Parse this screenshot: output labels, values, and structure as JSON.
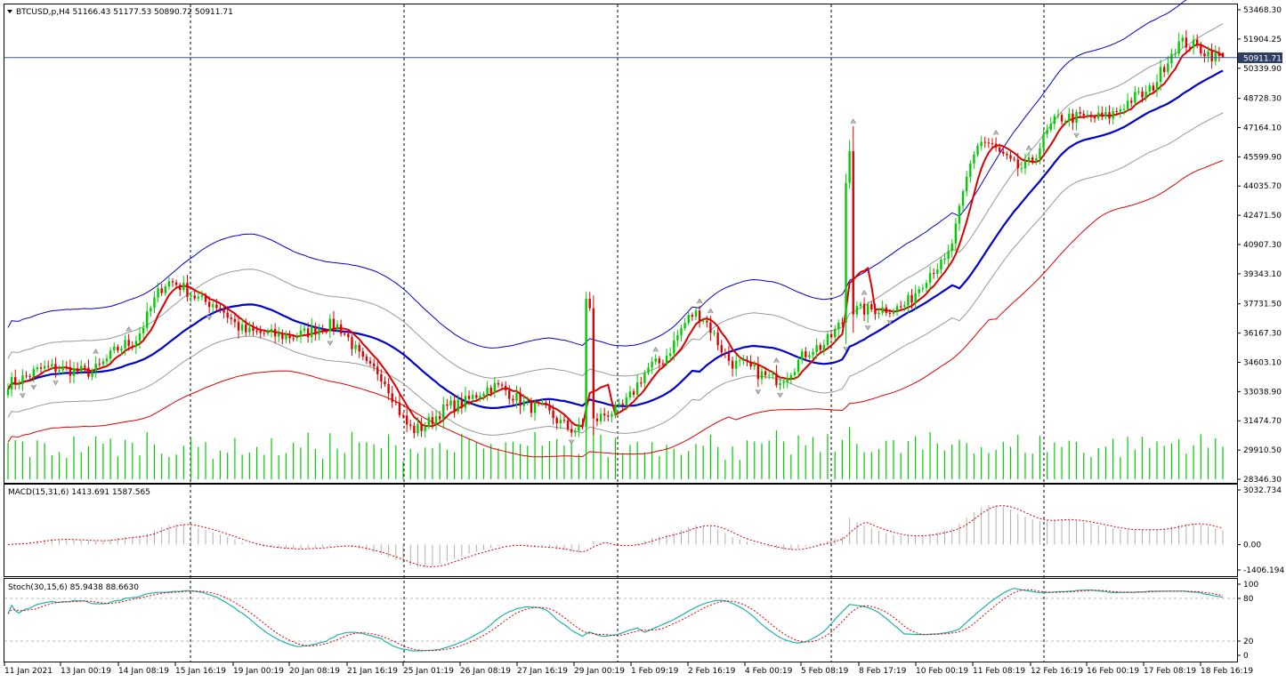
{
  "colors": {
    "bull": "#00cc00",
    "bear": "#dd0000",
    "ma_fast": "#dd0000",
    "ma_mid": "#0000cc",
    "envelope": "#999999",
    "volume": "#00cc00",
    "macd_hist": "#b0b0b0",
    "macd_signal": "#dd0000",
    "stoch_main": "#20b2aa",
    "stoch_signal": "#dd0000",
    "price_line": "#3b5b8c",
    "grid_sep": "#000000"
  },
  "main": {
    "symbol_line": "BTCUSD,p,H4  51166.43 51177.53 50890.72 50911.71",
    "current_price": "50911.71",
    "price_ticks": [
      "53468.30",
      "51904.25",
      "50339.90",
      "48728.30",
      "47164.10",
      "45599.90",
      "44035.70",
      "42471.50",
      "40907.30",
      "39343.10",
      "37731.50",
      "36167.30",
      "34603.10",
      "33038.90",
      "31474.70",
      "29910.50",
      "28346.30"
    ]
  },
  "macd": {
    "label": "MACD(15,31,6) 1413.691 1587.565",
    "ticks": [
      "3032.734",
      "0.00",
      "-1406.194"
    ]
  },
  "stoch": {
    "label": "Stoch(30,15,6) 85.9438 88.6630",
    "ticks": [
      "100",
      "80",
      "20",
      "0"
    ]
  },
  "time_labels": [
    "11 Jan 2021",
    "13 Jan 00:19",
    "14 Jan 08:19",
    "15 Jan 16:19",
    "19 Jan 00:19",
    "20 Jan 08:19",
    "21 Jan 16:19",
    "25 Jan 01:19",
    "26 Jan 08:19",
    "27 Jan 16:19",
    "29 Jan 00:19",
    "1 Feb 09:19",
    "2 Feb 16:19",
    "4 Feb 00:19",
    "5 Feb 08:19",
    "8 Feb 17:19",
    "10 Feb 00:19",
    "11 Feb 08:19",
    "12 Feb 16:19",
    "16 Feb 00:19",
    "17 Feb 08:19",
    "18 Feb 16:19"
  ],
  "chart_data": [
    {
      "type": "candlestick",
      "title": "BTCUSD,p,H4",
      "ohlc_last": {
        "open": 51166.43,
        "high": 51177.53,
        "low": 50890.72,
        "close": 50911.71
      },
      "ylim": [
        28346.3,
        53468.3
      ],
      "anchor_closes": [
        [
          "11 Jan 2021",
          33500
        ],
        [
          "12 Jan",
          34300
        ],
        [
          "13 Jan 00:19",
          34100
        ],
        [
          "13 Jan 12:19",
          35600
        ],
        [
          "14 Jan 08:19",
          38900
        ],
        [
          "15 Jan 00:19",
          37800
        ],
        [
          "15 Jan 16:19",
          36200
        ],
        [
          "17 Jan",
          36000
        ],
        [
          "19 Jan 00:19",
          36600
        ],
        [
          "20 Jan 08:19",
          34200
        ],
        [
          "21 Jan 16:19",
          31000
        ],
        [
          "22 Jan",
          32300
        ],
        [
          "25 Jan 01:19",
          33300
        ],
        [
          "26 Jan 08:19",
          32200
        ],
        [
          "27 Jan 16:19",
          31000
        ],
        [
          "28 Jan",
          32000
        ],
        [
          "29 Jan 00:19",
          34500
        ],
        [
          "29 Jan 08:19",
          37200
        ],
        [
          "30 Jan",
          34500
        ],
        [
          "1 Feb 09:19",
          33700
        ],
        [
          "2 Feb 16:19",
          35400
        ],
        [
          "4 Feb 00:19",
          37400
        ],
        [
          "5 Feb 08:19",
          37500
        ],
        [
          "7 Feb",
          39800
        ],
        [
          "8 Feb 17:19",
          46400
        ],
        [
          "10 Feb 00:19",
          45000
        ],
        [
          "11 Feb 08:19",
          47700
        ],
        [
          "12 Feb 16:19",
          47700
        ],
        [
          "16 Feb 00:19",
          48900
        ],
        [
          "17 Feb 08:19",
          51700
        ],
        [
          "18 Feb 16:19",
          50911.71
        ]
      ],
      "volume": "shown at the bottom of the price pane as green histogram bars, no scale"
    },
    {
      "type": "bar",
      "title": "MACD(15,31,6) 1413.691 1587.565",
      "ylim": [
        -1406.194,
        3032.734
      ],
      "series": [
        {
          "name": "MACD",
          "style": "histogram",
          "last": 1413.691
        },
        {
          "name": "Signal",
          "style": "dotted line",
          "last": 1587.565
        }
      ]
    },
    {
      "type": "line",
      "title": "Stoch(30,15,6) 85.9438 88.6630",
      "ylim": [
        0,
        100
      ],
      "levels": [
        20,
        80
      ],
      "series": [
        {
          "name": "Main",
          "last": 85.9438
        },
        {
          "name": "Signal",
          "style": "dotted",
          "last": 88.663
        }
      ]
    }
  ]
}
